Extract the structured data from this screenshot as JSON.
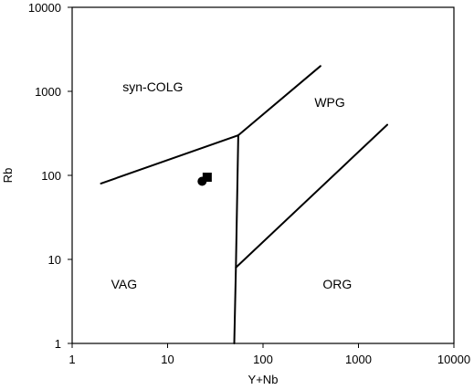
{
  "chart_data": {
    "type": "scatter",
    "title": "",
    "xlabel": "Y+Nb",
    "ylabel": "Rb",
    "xscale": "log",
    "yscale": "log",
    "xlim": [
      1,
      10000
    ],
    "ylim": [
      1,
      10000
    ],
    "grid": false,
    "legend": "none",
    "x_ticks": [
      1,
      10,
      100,
      1000,
      10000
    ],
    "x_tick_labels": [
      "1",
      "10",
      "100",
      "1000",
      "10000"
    ],
    "y_ticks": [
      1,
      10,
      100,
      1000,
      10000
    ],
    "y_tick_labels": [
      "1",
      "10",
      "100",
      "1000",
      "10000"
    ],
    "boundaries": [
      {
        "points": [
          [
            2,
            80
          ],
          [
            55,
            300
          ],
          [
            400,
            2000
          ]
        ]
      },
      {
        "points": [
          [
            55,
            300
          ],
          [
            52,
            8
          ],
          [
            50,
            1
          ]
        ]
      },
      {
        "points": [
          [
            52,
            8
          ],
          [
            2000,
            400
          ]
        ]
      }
    ],
    "region_labels": [
      {
        "text": "syn-COLG",
        "x": 7,
        "y": 1000
      },
      {
        "text": "WPG",
        "x": 500,
        "y": 650
      },
      {
        "text": "VAG",
        "x": 3.5,
        "y": 4.5
      },
      {
        "text": "ORG",
        "x": 600,
        "y": 4.5
      }
    ],
    "series": [
      {
        "marker": "circle",
        "color": "#000000",
        "points": [
          [
            23,
            85
          ]
        ]
      },
      {
        "marker": "square",
        "color": "#000000",
        "points": [
          [
            26,
            95
          ]
        ]
      }
    ]
  }
}
